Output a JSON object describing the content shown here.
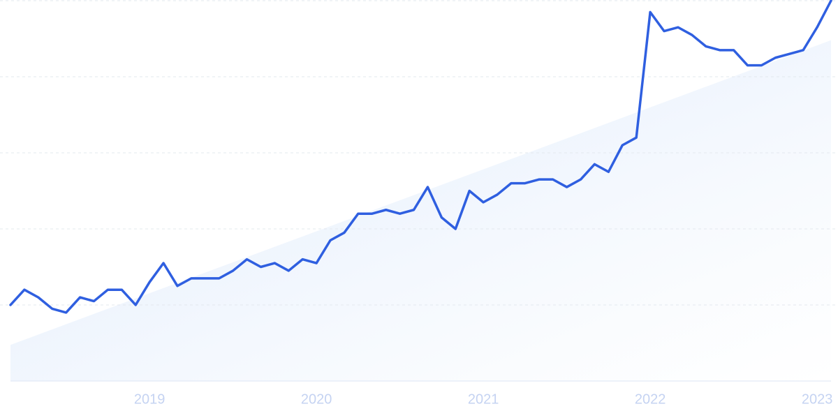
{
  "chart_data": {
    "type": "line",
    "categories": [
      null,
      null,
      null,
      null,
      null,
      null,
      null,
      null,
      null,
      null,
      "2019",
      null,
      null,
      null,
      null,
      null,
      null,
      null,
      null,
      null,
      null,
      null,
      "2020",
      null,
      null,
      null,
      null,
      null,
      null,
      null,
      null,
      null,
      null,
      null,
      "2021",
      null,
      null,
      null,
      null,
      null,
      null,
      null,
      null,
      null,
      null,
      null,
      "2022",
      null,
      null,
      null,
      null,
      null,
      null,
      null,
      null,
      null,
      null,
      null,
      "2023",
      null
    ],
    "series": [
      {
        "color": "#2f5fe0",
        "values": [
          20,
          24,
          22,
          19,
          18,
          22,
          21,
          24,
          24,
          20,
          26,
          31,
          25,
          27,
          27,
          27,
          29,
          32,
          30,
          31,
          29,
          32,
          31,
          37,
          39,
          44,
          44,
          45,
          44,
          45,
          51,
          43,
          40,
          50,
          47,
          49,
          52,
          52,
          53,
          53,
          51,
          53,
          57,
          55,
          62,
          64,
          97,
          92,
          93,
          91,
          88,
          87,
          87,
          83,
          83,
          85,
          86,
          87,
          93,
          100
        ]
      }
    ],
    "trend": [
      9.5,
      89.6
    ],
    "trend_color": "#dce9fb",
    "ylim": [
      0,
      100
    ],
    "ygrid": [
      0,
      20,
      40,
      60,
      80,
      100
    ],
    "grid": true
  }
}
